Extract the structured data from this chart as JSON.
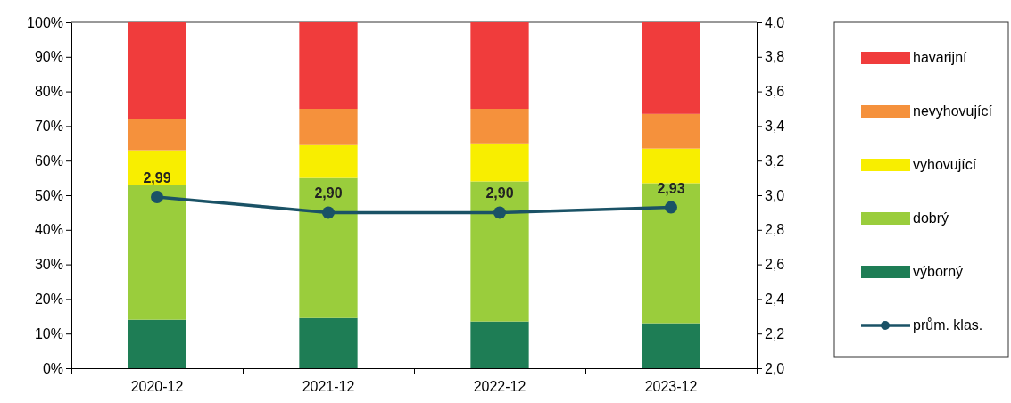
{
  "chart_data": {
    "type": "bar",
    "stacked": true,
    "categories": [
      "2020-12",
      "2021-12",
      "2022-12",
      "2023-12"
    ],
    "ylim": [
      0,
      100
    ],
    "yticks": [
      {
        "value": 0,
        "label": "0%"
      },
      {
        "value": 10,
        "label": "10%"
      },
      {
        "value": 20,
        "label": "20%"
      },
      {
        "value": 30,
        "label": "30%"
      },
      {
        "value": 40,
        "label": "40%"
      },
      {
        "value": 50,
        "label": "50%"
      },
      {
        "value": 60,
        "label": "60%"
      },
      {
        "value": 70,
        "label": "70%"
      },
      {
        "value": 80,
        "label": "80%"
      },
      {
        "value": 90,
        "label": "90%"
      },
      {
        "value": 100,
        "label": "100%"
      }
    ],
    "y2lim": [
      2,
      4
    ],
    "y2ticks": [
      {
        "value": 2,
        "label": "2,0"
      },
      {
        "value": 2.2,
        "label": "2,2"
      },
      {
        "value": 2.4,
        "label": "2,4"
      },
      {
        "value": 2.6,
        "label": "2,6"
      },
      {
        "value": 2.8,
        "label": "2,8"
      },
      {
        "value": 3,
        "label": "3,0"
      },
      {
        "value": 3.2,
        "label": "3,2"
      },
      {
        "value": 3.4,
        "label": "3,4"
      },
      {
        "value": 3.6,
        "label": "3,6"
      },
      {
        "value": 3.8,
        "label": "3,8"
      },
      {
        "value": 4,
        "label": "4,0"
      }
    ],
    "grid": false,
    "legend": "right",
    "marker": "circle",
    "series": [
      {
        "name": "výborný",
        "color": "#1e7d55",
        "values": [
          14,
          14.5,
          13.5,
          13
        ]
      },
      {
        "name": "dobrý",
        "color": "#9acd3c",
        "values": [
          39,
          40.5,
          40.5,
          40.5
        ]
      },
      {
        "name": "vyhovující",
        "color": "#f8ee00",
        "values": [
          10,
          9.5,
          11,
          10
        ]
      },
      {
        "name": "nevyhovující",
        "color": "#f5913c",
        "values": [
          9,
          10.5,
          10,
          10
        ]
      },
      {
        "name": "havarijní",
        "color": "#f03c3c",
        "values": [
          28,
          25,
          25,
          26.5
        ]
      },
      {
        "name": "prům. klas.",
        "type": "line",
        "axis": "y2",
        "color": "#1a5266",
        "values": [
          2.99,
          2.9,
          2.9,
          2.93
        ],
        "value_labels": [
          "2,99",
          "2,90",
          "2,90",
          "2,93"
        ]
      }
    ]
  }
}
